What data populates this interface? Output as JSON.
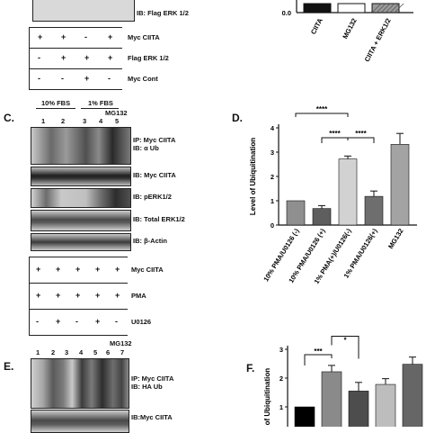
{
  "panelA": {
    "blot_label": "IB: Flag ERK 1/2",
    "conditions": [
      {
        "label": "Myc CIITA",
        "signs": [
          "+",
          "+",
          "-",
          "+"
        ]
      },
      {
        "label": "Flag ERK 1/2",
        "signs": [
          "-",
          "+",
          "+",
          "+"
        ]
      },
      {
        "label": "Myc Cont",
        "signs": [
          "-",
          "-",
          "+",
          "-"
        ]
      }
    ]
  },
  "panelB": {
    "y_tick_visible": "0.0",
    "categories": [
      "CIITA",
      "MG132",
      "CIITA + ERK1/2"
    ]
  },
  "panelC": {
    "letter": "C.",
    "group_labels": [
      "10% FBS",
      "1% FBS"
    ],
    "mg_label": "MG132",
    "lane_numbers": [
      "1",
      "2",
      "3",
      "4",
      "5"
    ],
    "blot_labels": [
      "IP: Myc CIITA\nIB: α Ub",
      "IB: Myc CIITA",
      "IB: pERK1/2",
      "IB: Total ERK1/2",
      "IB: β-Actin"
    ],
    "conditions": [
      {
        "label": "Myc CIITA",
        "signs": [
          "+",
          "+",
          "+",
          "+",
          "+"
        ]
      },
      {
        "label": "PMA",
        "signs": [
          "+",
          "+",
          "+",
          "+",
          "+"
        ]
      },
      {
        "label": "U0126",
        "signs": [
          "-",
          "+",
          "-",
          "+",
          "-"
        ]
      }
    ]
  },
  "panelD": {
    "letter": "D.",
    "chart_data": {
      "type": "bar",
      "ylabel": "Level of Ubiquitination",
      "ylim": [
        0,
        4
      ],
      "yticks": [
        "0",
        "1",
        "2",
        "3",
        "4"
      ],
      "categories": [
        "10% PMA/U0126 (-)",
        "10% PMA/U0126 (+)",
        "1% PMA(+)/U0126(-)",
        "1% PMA/U0126(+)",
        "MG132"
      ],
      "values": [
        1.0,
        0.68,
        2.72,
        1.18,
        3.32
      ],
      "errors": [
        0.0,
        0.12,
        0.12,
        0.22,
        0.45
      ],
      "colors": [
        "#8f8f8f",
        "#5e5e5e",
        "#d2d2d2",
        "#6e6e6e",
        "#a3a3a3"
      ],
      "significance": [
        {
          "label": "****",
          "from": 0,
          "to": 2
        },
        {
          "label": "****",
          "from": 1,
          "to": 2
        },
        {
          "label": "****",
          "from": 2,
          "to": 3
        }
      ]
    }
  },
  "panelE": {
    "letter": "E.",
    "mg_label": "MG132",
    "lane_numbers": [
      "1",
      "2",
      "3",
      "4",
      "5",
      "6",
      "7"
    ],
    "blot_labels": [
      "IP: Myc CIITA\nIB: HA Ub",
      "IB:Myc CIITA"
    ]
  },
  "panelF": {
    "letter": "F.",
    "chart_data": {
      "type": "bar",
      "ylabel": "Level of Ubiquitination",
      "ylim": [
        0,
        3
      ],
      "yticks": [
        "1",
        "2",
        "3"
      ],
      "values": [
        1.0,
        2.22,
        1.55,
        1.78,
        2.48
      ],
      "errors": [
        0.0,
        0.22,
        0.3,
        0.2,
        0.25
      ],
      "colors": [
        "#000000",
        "#8a8a8a",
        "#4d4d4d",
        "#bdbdbd",
        "#666666"
      ],
      "significance": [
        {
          "label": "***",
          "from": 0,
          "to": 1
        },
        {
          "label": "*",
          "from": 1,
          "to": 2
        }
      ]
    }
  }
}
